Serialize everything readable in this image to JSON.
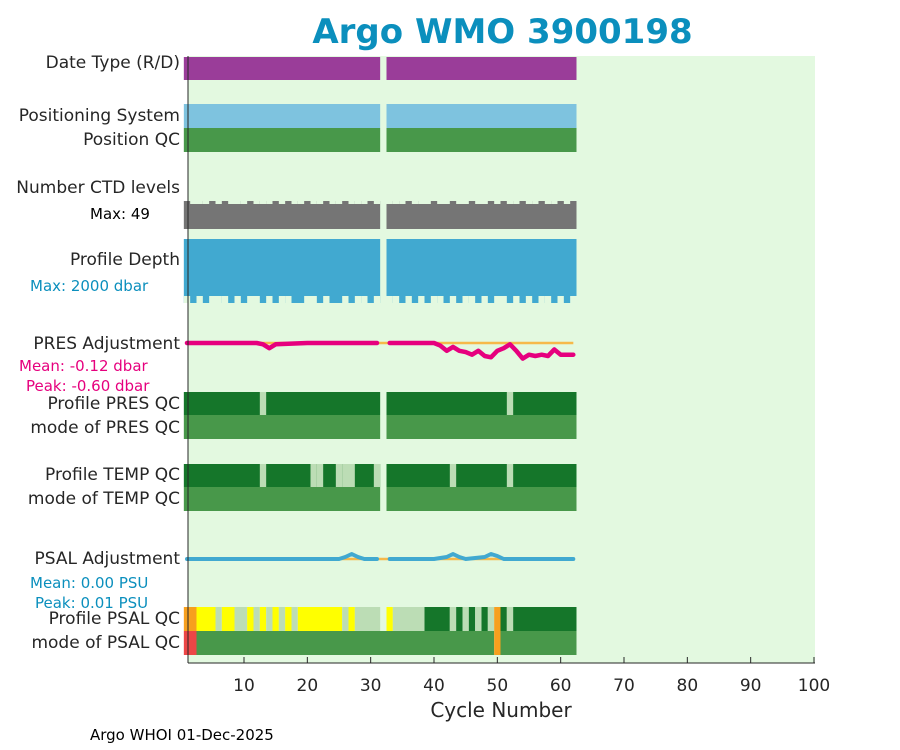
{
  "title": "Argo WMO 3900198",
  "footer": "Argo WHOI 01-Dec-2025",
  "colors": {
    "plot_bg": "#e3f9e0",
    "purple": "#9a3d99",
    "light_blue": "#7ec3df",
    "green": "#48984a",
    "dark_green": "#15762a",
    "pale_green": "#bcddb5",
    "gray": "#757575",
    "depth_blue": "#41a9d0",
    "magenta": "#e6007e",
    "orange": "#f6b94a",
    "yellow": "#ffff00",
    "orange_qc": "#f7a01e",
    "red": "#ec4646",
    "title_blue": "#0b8fbd"
  },
  "rows": {
    "date_type": "Date Type (R/D)",
    "positioning_system": "Positioning System",
    "position_qc": "Position QC",
    "number_ctd_levels": "Number CTD levels",
    "ctd_max": "Max: 49",
    "profile_depth": "Profile Depth",
    "depth_max": "Max: 2000 dbar",
    "pres_adjustment": "PRES Adjustment",
    "pres_mean": "Mean: -0.12 dbar",
    "pres_peak": "Peak: -0.60 dbar",
    "profile_pres_qc": "Profile PRES QC",
    "mode_pres_qc": "mode of PRES QC",
    "profile_temp_qc": "Profile TEMP QC",
    "mode_temp_qc": "mode of TEMP QC",
    "psal_adjustment": "PSAL Adjustment",
    "psal_mean": "Mean: 0.00 PSU",
    "psal_peak": "Peak: 0.01 PSU",
    "profile_psal_qc": "Profile PSAL QC",
    "mode_psal_qc": "mode of PSAL QC"
  },
  "chart_data": {
    "type": "heatmap",
    "xlabel": "Cycle Number",
    "xlim": [
      1,
      100
    ],
    "x_ticks": [
      10,
      20,
      30,
      40,
      50,
      60,
      70,
      80,
      90,
      100
    ],
    "cycles_present": [
      1,
      62
    ],
    "missing_cycles": [
      32
    ],
    "pres_adjustment": {
      "cycles": [
        1,
        5,
        10,
        12,
        13,
        14,
        15,
        20,
        25,
        30,
        31,
        33,
        35,
        38,
        40,
        41,
        42,
        43,
        44,
        45,
        46,
        47,
        48,
        49,
        50,
        51,
        52,
        53,
        54,
        55,
        56,
        57,
        58,
        59,
        60,
        61,
        62
      ],
      "values": [
        0,
        0,
        0,
        0,
        -0.05,
        -0.2,
        -0.05,
        0,
        0,
        0,
        0,
        0,
        0,
        0,
        0,
        -0.1,
        -0.3,
        -0.15,
        -0.3,
        -0.35,
        -0.45,
        -0.3,
        -0.5,
        -0.55,
        -0.3,
        -0.2,
        -0.05,
        -0.3,
        -0.6,
        -0.45,
        -0.5,
        -0.45,
        -0.5,
        -0.25,
        -0.45,
        -0.45,
        -0.45
      ]
    },
    "psal_adjustment": {
      "cycles": [
        1,
        10,
        20,
        25,
        26,
        27,
        28,
        29,
        30,
        31,
        33,
        40,
        42,
        43,
        44,
        45,
        48,
        49,
        50,
        51,
        52,
        55,
        60,
        62
      ],
      "values": [
        0,
        0,
        0,
        0,
        0.004,
        0.01,
        0.004,
        0,
        0,
        0,
        0,
        0,
        0.004,
        0.01,
        0.004,
        0,
        0.004,
        0.01,
        0.006,
        0,
        0,
        0,
        0,
        0
      ]
    },
    "profile_pres_qc_pale_cycles": [
      13,
      52
    ],
    "profile_temp_qc_pale_cycles": [
      13,
      21,
      22,
      25,
      26,
      27,
      31,
      43,
      52
    ],
    "profile_psal_qc": [
      {
        "from": 1,
        "to": 2,
        "class": "orange_qc"
      },
      {
        "from": 3,
        "to": 5,
        "class": "yellow"
      },
      {
        "from": 6,
        "to": 6,
        "class": "pale_green"
      },
      {
        "from": 7,
        "to": 8,
        "class": "yellow"
      },
      {
        "from": 9,
        "to": 10,
        "class": "pale_green"
      },
      {
        "from": 11,
        "to": 11,
        "class": "yellow"
      },
      {
        "from": 12,
        "to": 12,
        "class": "pale_green"
      },
      {
        "from": 13,
        "to": 13,
        "class": "yellow"
      },
      {
        "from": 14,
        "to": 14,
        "class": "pale_green"
      },
      {
        "from": 15,
        "to": 15,
        "class": "yellow"
      },
      {
        "from": 16,
        "to": 16,
        "class": "pale_green"
      },
      {
        "from": 17,
        "to": 17,
        "class": "yellow"
      },
      {
        "from": 18,
        "to": 18,
        "class": "pale_green"
      },
      {
        "from": 19,
        "to": 25,
        "class": "yellow"
      },
      {
        "from": 26,
        "to": 26,
        "class": "pale_green"
      },
      {
        "from": 27,
        "to": 27,
        "class": "yellow"
      },
      {
        "from": 28,
        "to": 31,
        "class": "pale_green"
      },
      {
        "from": 33,
        "to": 33,
        "class": "yellow"
      },
      {
        "from": 34,
        "to": 38,
        "class": "pale_green"
      },
      {
        "from": 39,
        "to": 42,
        "class": "dark_green"
      },
      {
        "from": 43,
        "to": 43,
        "class": "pale_green"
      },
      {
        "from": 44,
        "to": 44,
        "class": "dark_green"
      },
      {
        "from": 45,
        "to": 45,
        "class": "pale_green"
      },
      {
        "from": 46,
        "to": 46,
        "class": "dark_green"
      },
      {
        "from": 47,
        "to": 47,
        "class": "pale_green"
      },
      {
        "from": 48,
        "to": 48,
        "class": "dark_green"
      },
      {
        "from": 49,
        "to": 49,
        "class": "pale_green"
      },
      {
        "from": 50,
        "to": 50,
        "class": "orange_qc"
      },
      {
        "from": 51,
        "to": 51,
        "class": "dark_green"
      },
      {
        "from": 52,
        "to": 52,
        "class": "pale_green"
      },
      {
        "from": 53,
        "to": 62,
        "class": "dark_green"
      }
    ],
    "mode_psal_qc": [
      {
        "from": 1,
        "to": 2,
        "class": "red"
      },
      {
        "from": 3,
        "to": 49,
        "class": "green"
      },
      {
        "from": 50,
        "to": 50,
        "class": "orange_qc"
      },
      {
        "from": 51,
        "to": 62,
        "class": "green"
      }
    ],
    "ctd_levels_short_cycles": [
      2,
      3,
      4,
      6,
      8,
      9,
      10,
      12,
      13,
      14,
      16,
      18,
      19,
      21,
      22,
      24,
      25,
      27,
      28,
      29,
      31,
      33,
      34,
      35,
      37,
      38,
      39,
      41,
      42,
      44,
      45,
      47,
      48,
      50,
      52,
      53,
      55,
      56,
      58,
      59,
      61
    ],
    "depth_short_cycles": [
      1,
      3,
      5,
      6,
      7,
      9,
      11,
      12,
      14,
      16,
      17,
      20,
      21,
      23,
      26,
      28,
      29,
      31,
      33,
      34,
      36,
      38,
      40,
      41,
      43,
      45,
      46,
      48,
      50,
      51,
      53,
      55,
      57,
      58,
      60,
      62
    ]
  }
}
